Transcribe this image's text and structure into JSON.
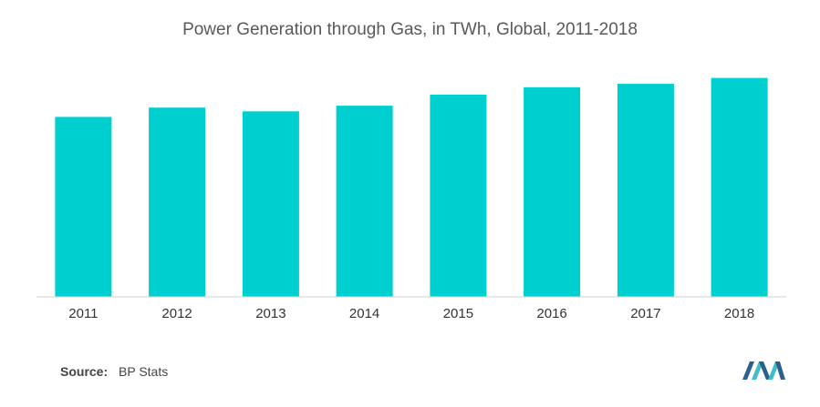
{
  "chart_data": {
    "type": "bar",
    "title": "Power Generation through Gas, in TWh, Global, 2011-2018",
    "xlabel": "",
    "ylabel": "",
    "categories": [
      "2011",
      "2012",
      "2013",
      "2014",
      "2015",
      "2016",
      "2017",
      "2018"
    ],
    "values": [
      4850,
      5100,
      5000,
      5150,
      5450,
      5650,
      5740,
      5900
    ],
    "ylim": [
      0,
      8000
    ],
    "grid": false,
    "legend": "none",
    "bar_color": "#00cfd0"
  },
  "footer": {
    "source_label": "Source:",
    "source_value": "BP Stats"
  },
  "logo": {
    "icon": "mordor-intelligence-logo",
    "colors": [
      "#2a5f8f",
      "#3fbfc4"
    ]
  }
}
